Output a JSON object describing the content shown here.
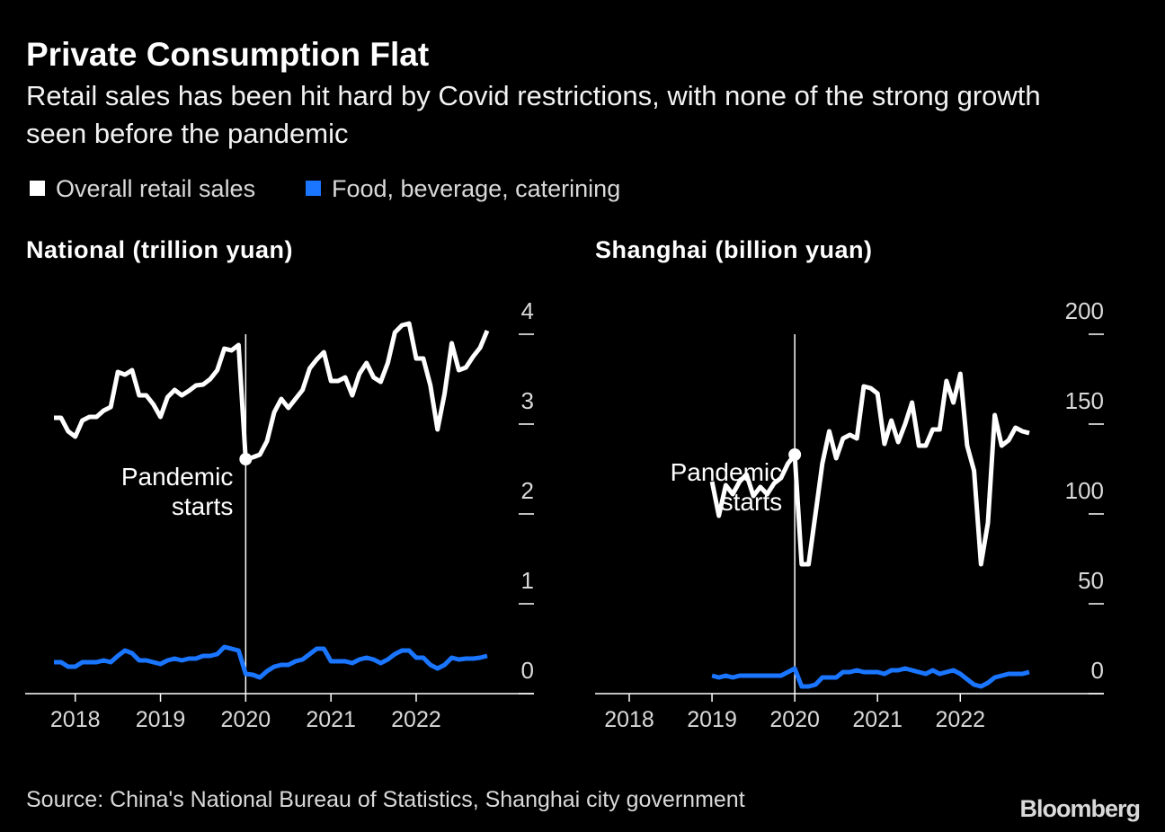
{
  "title": "Private Consumption Flat",
  "subtitle": "Retail sales has been hit hard by Covid restrictions, with none of the strong growth seen before the pandemic",
  "source": "Source: China's National Bureau of Statistics, Shanghai city government",
  "logo": "Bloomberg",
  "chart_data": [
    {
      "type": "line",
      "title": "National (trillion yuan)",
      "categories": [
        null,
        null,
        null,
        "2018",
        null,
        null,
        null,
        null,
        null,
        null,
        null,
        null,
        null,
        null,
        null,
        "2019",
        null,
        null,
        null,
        null,
        null,
        null,
        null,
        null,
        null,
        null,
        null,
        "2020",
        null,
        null,
        null,
        null,
        null,
        null,
        null,
        null,
        null,
        null,
        null,
        "2021",
        null,
        null,
        null,
        null,
        null,
        null,
        null,
        null,
        null,
        null,
        null,
        "2022",
        null,
        null,
        null,
        null,
        null,
        null,
        null,
        null,
        null,
        null
      ],
      "series": [
        {
          "name": "Overall retail sales",
          "color": "#ffffff",
          "values": [
            3.07,
            3.07,
            2.92,
            2.86,
            3.04,
            3.08,
            3.08,
            3.15,
            3.19,
            3.58,
            3.55,
            3.6,
            3.32,
            3.32,
            3.22,
            3.08,
            3.3,
            3.38,
            3.32,
            3.37,
            3.43,
            3.44,
            3.5,
            3.6,
            3.84,
            3.82,
            3.88,
            2.61,
            2.63,
            2.66,
            2.81,
            3.13,
            3.28,
            3.18,
            3.28,
            3.38,
            3.62,
            3.72,
            3.8,
            3.48,
            3.48,
            3.52,
            3.32,
            3.56,
            3.68,
            3.52,
            3.47,
            3.68,
            4.02,
            4.1,
            4.12,
            3.73,
            3.73,
            3.43,
            2.94,
            3.34,
            3.9,
            3.6,
            3.63,
            3.75,
            3.85,
            4.04
          ]
        },
        {
          "name": "Food, beverage, caterining",
          "color": "#1a75ff",
          "values": [
            0.35,
            0.35,
            0.3,
            0.3,
            0.35,
            0.35,
            0.35,
            0.37,
            0.35,
            0.42,
            0.48,
            0.45,
            0.37,
            0.37,
            0.35,
            0.33,
            0.37,
            0.39,
            0.37,
            0.39,
            0.39,
            0.42,
            0.42,
            0.44,
            0.52,
            0.5,
            0.48,
            0.22,
            0.21,
            0.18,
            0.25,
            0.3,
            0.32,
            0.32,
            0.36,
            0.38,
            0.44,
            0.5,
            0.5,
            0.36,
            0.36,
            0.36,
            0.34,
            0.38,
            0.4,
            0.38,
            0.34,
            0.38,
            0.44,
            0.48,
            0.48,
            0.4,
            0.4,
            0.32,
            0.28,
            0.32,
            0.4,
            0.38,
            0.39,
            0.39,
            0.4,
            0.42
          ]
        }
      ],
      "ylim": [
        0,
        4.2
      ],
      "yticks": [
        0,
        1,
        2,
        3,
        4
      ],
      "grid": false,
      "annotation": {
        "text": "Pandemic starts",
        "x": "2020"
      }
    },
    {
      "type": "line",
      "title": "Shanghai (billion yuan)",
      "categories": [
        "2018",
        null,
        null,
        null,
        null,
        null,
        null,
        null,
        null,
        null,
        null,
        null,
        "2019",
        null,
        null,
        null,
        null,
        null,
        null,
        null,
        null,
        null,
        null,
        null,
        "2020",
        null,
        null,
        null,
        null,
        null,
        null,
        null,
        null,
        null,
        null,
        null,
        "2021",
        null,
        null,
        null,
        null,
        null,
        null,
        null,
        null,
        null,
        null,
        null,
        "2022",
        null,
        null,
        null,
        null,
        null,
        null,
        null,
        null,
        null,
        null
      ],
      "series": [
        {
          "name": "Overall retail sales",
          "color": "#ffffff",
          "values": [
            null,
            null,
            null,
            null,
            null,
            null,
            null,
            null,
            null,
            null,
            null,
            null,
            118,
            99,
            116,
            111,
            118,
            122,
            110,
            115,
            111,
            117,
            120,
            128,
            133,
            72,
            72,
            100,
            128,
            146,
            131,
            142,
            144,
            142,
            171,
            170,
            167,
            139,
            152,
            140,
            150,
            162,
            138,
            138,
            147,
            147,
            174,
            162,
            178,
            138,
            124,
            72,
            95,
            155,
            138,
            141,
            148,
            146,
            145
          ]
        },
        {
          "name": "Food, beverage, caterining",
          "color": "#1a75ff",
          "values": [
            null,
            null,
            null,
            null,
            null,
            null,
            null,
            null,
            null,
            null,
            null,
            null,
            10,
            9,
            10,
            9,
            10,
            10,
            10,
            10,
            10,
            10,
            10,
            12,
            14,
            4,
            4,
            5,
            9,
            9,
            9,
            12,
            12,
            13,
            12,
            12,
            12,
            11,
            13,
            13,
            14,
            13,
            12,
            11,
            13,
            11,
            12,
            13,
            11,
            8,
            5,
            4,
            6,
            9,
            10,
            11,
            11,
            11,
            12
          ]
        }
      ],
      "ylim": [
        0,
        200
      ],
      "yticks": [
        0,
        50,
        100,
        150,
        200
      ],
      "grid": false,
      "annotation": {
        "text": "Pandemic starts",
        "x": "2020"
      }
    }
  ]
}
